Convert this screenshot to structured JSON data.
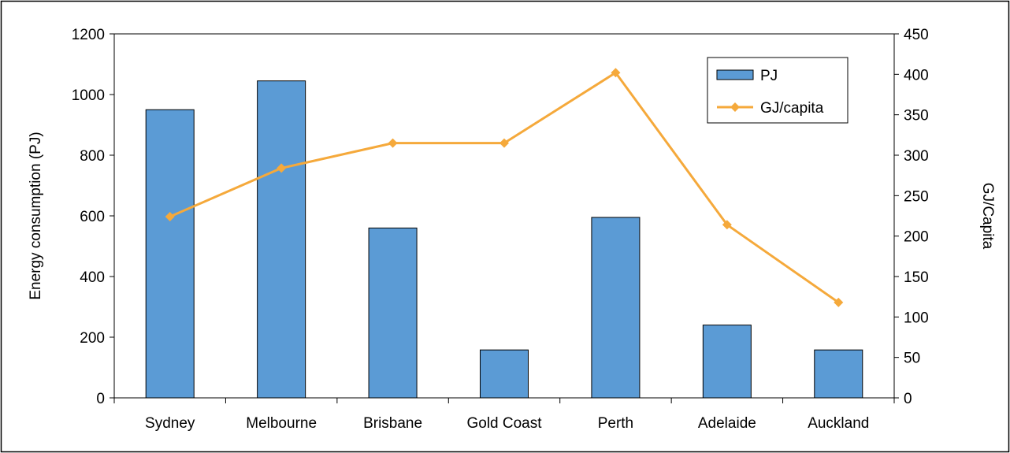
{
  "chart_data": {
    "type": "bar",
    "title": "",
    "categories": [
      "Sydney",
      "Melbourne",
      "Brisbane",
      "Gold Coast",
      "Perth",
      "Adelaide",
      "Auckland"
    ],
    "series": [
      {
        "name": "PJ",
        "type": "bar",
        "axis": "left",
        "color": "#5B9BD5",
        "values": [
          950,
          1045,
          560,
          158,
          595,
          240,
          158
        ]
      },
      {
        "name": "GJ/capita",
        "type": "line",
        "axis": "right",
        "color": "#F5A93B",
        "marker": "diamond",
        "values": [
          224,
          284,
          315,
          315,
          402,
          214,
          118
        ]
      }
    ],
    "ylabel": "Energy consumption (PJ)",
    "ylim": [
      0,
      1200
    ],
    "yticks": [
      "0",
      "200",
      "400",
      "600",
      "800",
      "1000",
      "1200"
    ],
    "y2label": "GJ/Capita",
    "y2lim": [
      0,
      450
    ],
    "y2ticks": [
      "0",
      "50",
      "100",
      "150",
      "200",
      "250",
      "300",
      "350",
      "400",
      "450"
    ],
    "grid": false,
    "legend_position": "top-right"
  }
}
